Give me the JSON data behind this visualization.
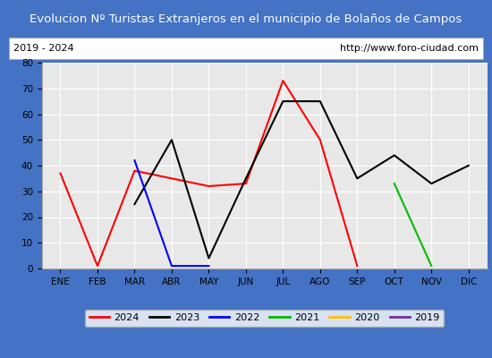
{
  "title": "Evolucion Nº Turistas Extranjeros en el municipio de Bolaños de Campos",
  "subtitle_left": "2019 - 2024",
  "subtitle_right": "http://www.foro-ciudad.com",
  "title_bg_color": "#5b9bd5",
  "title_text_color": "#ffffff",
  "months": [
    "ENE",
    "FEB",
    "MAR",
    "ABR",
    "MAY",
    "JUN",
    "JUL",
    "AGO",
    "SEP",
    "OCT",
    "NOV",
    "DIC"
  ],
  "ylim": [
    0,
    80
  ],
  "yticks": [
    0,
    10,
    20,
    30,
    40,
    50,
    60,
    70,
    80
  ],
  "series": {
    "2024": {
      "color": "#ff0000",
      "values": [
        37,
        1,
        38,
        35,
        32,
        33,
        73,
        50,
        1,
        null,
        null,
        null
      ]
    },
    "2023": {
      "color": "#000000",
      "values": [
        null,
        null,
        25,
        50,
        4,
        35,
        65,
        65,
        35,
        44,
        33,
        40
      ]
    },
    "2022": {
      "color": "#0000ff",
      "values": [
        null,
        null,
        42,
        1,
        1,
        null,
        null,
        null,
        null,
        null,
        null,
        null
      ]
    },
    "2021": {
      "color": "#00bb00",
      "values": [
        null,
        null,
        null,
        null,
        null,
        null,
        null,
        null,
        null,
        33,
        1,
        null
      ]
    },
    "2020": {
      "color": "#ffc000",
      "values": [
        null,
        null,
        null,
        null,
        null,
        null,
        null,
        null,
        null,
        null,
        null,
        null
      ]
    },
    "2019": {
      "color": "#7030a0",
      "values": [
        null,
        null,
        null,
        null,
        null,
        null,
        null,
        null,
        null,
        null,
        null,
        null
      ]
    }
  },
  "legend_order": [
    "2024",
    "2023",
    "2022",
    "2021",
    "2020",
    "2019"
  ],
  "plot_bg_color": "#e8e8e8",
  "grid_color": "#ffffff",
  "border_color": "#4472c4",
  "fig_bg_color": "#4472c4"
}
